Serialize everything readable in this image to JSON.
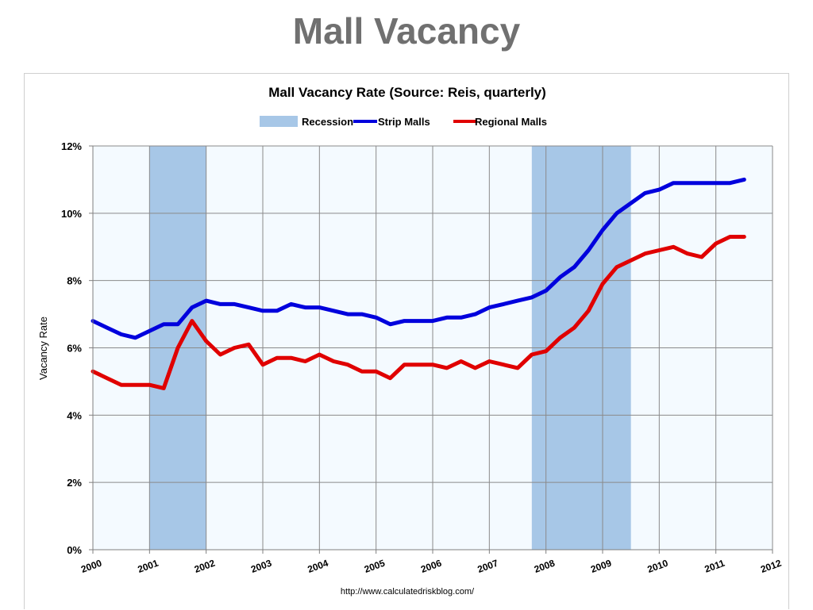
{
  "slide": {
    "title": "Mall Vacancy"
  },
  "chart_data": {
    "type": "line",
    "title": "Mall Vacancy Rate (Source: Reis, quarterly)",
    "xlabel": "",
    "ylabel": "Vacancy Rate",
    "source": "http://www.calculatedriskblog.com/",
    "xlim": [
      2000,
      2012
    ],
    "ylim": [
      0,
      12
    ],
    "y_ticks": [
      0,
      2,
      4,
      6,
      8,
      10,
      12
    ],
    "y_tick_labels": [
      "0%",
      "2%",
      "4%",
      "6%",
      "8%",
      "10%",
      "12%"
    ],
    "x_tick_labels": [
      "2000",
      "2001",
      "2002",
      "2003",
      "2004",
      "2005",
      "2006",
      "2007",
      "2008",
      "2009",
      "2010",
      "2011",
      "2012"
    ],
    "grid": true,
    "legend_position": "top",
    "recessions": [
      [
        2001.0,
        2002.0
      ],
      [
        2007.75,
        2009.5
      ]
    ],
    "series": [
      {
        "name": "Recession",
        "kind": "band",
        "color": "#a7c7e7"
      },
      {
        "name": "Strip Malls",
        "color": "#0000dd",
        "x": [
          2000.0,
          2000.25,
          2000.5,
          2000.75,
          2001.0,
          2001.25,
          2001.5,
          2001.75,
          2002.0,
          2002.25,
          2002.5,
          2002.75,
          2003.0,
          2003.25,
          2003.5,
          2003.75,
          2004.0,
          2004.25,
          2004.5,
          2004.75,
          2005.0,
          2005.25,
          2005.5,
          2005.75,
          2006.0,
          2006.25,
          2006.5,
          2006.75,
          2007.0,
          2007.25,
          2007.5,
          2007.75,
          2008.0,
          2008.25,
          2008.5,
          2008.75,
          2009.0,
          2009.25,
          2009.5,
          2009.75,
          2010.0,
          2010.25,
          2010.5,
          2010.75,
          2011.0,
          2011.25,
          2011.5
        ],
        "values": [
          6.8,
          6.6,
          6.4,
          6.3,
          6.5,
          6.7,
          6.7,
          7.2,
          7.4,
          7.3,
          7.3,
          7.2,
          7.1,
          7.1,
          7.3,
          7.2,
          7.2,
          7.1,
          7.0,
          7.0,
          6.9,
          6.7,
          6.8,
          6.8,
          6.8,
          6.9,
          6.9,
          7.0,
          7.2,
          7.3,
          7.4,
          7.5,
          7.7,
          8.1,
          8.4,
          8.9,
          9.5,
          10.0,
          10.3,
          10.6,
          10.7,
          10.9,
          10.9,
          10.9,
          10.9,
          10.9,
          11.0
        ]
      },
      {
        "name": "Regional Malls",
        "color": "#e00000",
        "x": [
          2000.0,
          2000.25,
          2000.5,
          2000.75,
          2001.0,
          2001.25,
          2001.5,
          2001.75,
          2002.0,
          2002.25,
          2002.5,
          2002.75,
          2003.0,
          2003.25,
          2003.5,
          2003.75,
          2004.0,
          2004.25,
          2004.5,
          2004.75,
          2005.0,
          2005.25,
          2005.5,
          2005.75,
          2006.0,
          2006.25,
          2006.5,
          2006.75,
          2007.0,
          2007.25,
          2007.5,
          2007.75,
          2008.0,
          2008.25,
          2008.5,
          2008.75,
          2009.0,
          2009.25,
          2009.5,
          2009.75,
          2010.0,
          2010.25,
          2010.5,
          2010.75,
          2011.0,
          2011.25,
          2011.5
        ],
        "values": [
          5.3,
          5.1,
          4.9,
          4.9,
          4.9,
          4.8,
          6.0,
          6.8,
          6.2,
          5.8,
          6.0,
          6.1,
          5.5,
          5.7,
          5.7,
          5.6,
          5.8,
          5.6,
          5.5,
          5.3,
          5.3,
          5.1,
          5.5,
          5.5,
          5.5,
          5.4,
          5.6,
          5.4,
          5.6,
          5.5,
          5.4,
          5.8,
          5.9,
          6.3,
          6.6,
          7.1,
          7.9,
          8.4,
          8.6,
          8.8,
          8.9,
          9.0,
          8.8,
          8.7,
          9.1,
          9.3,
          9.3
        ]
      }
    ]
  }
}
